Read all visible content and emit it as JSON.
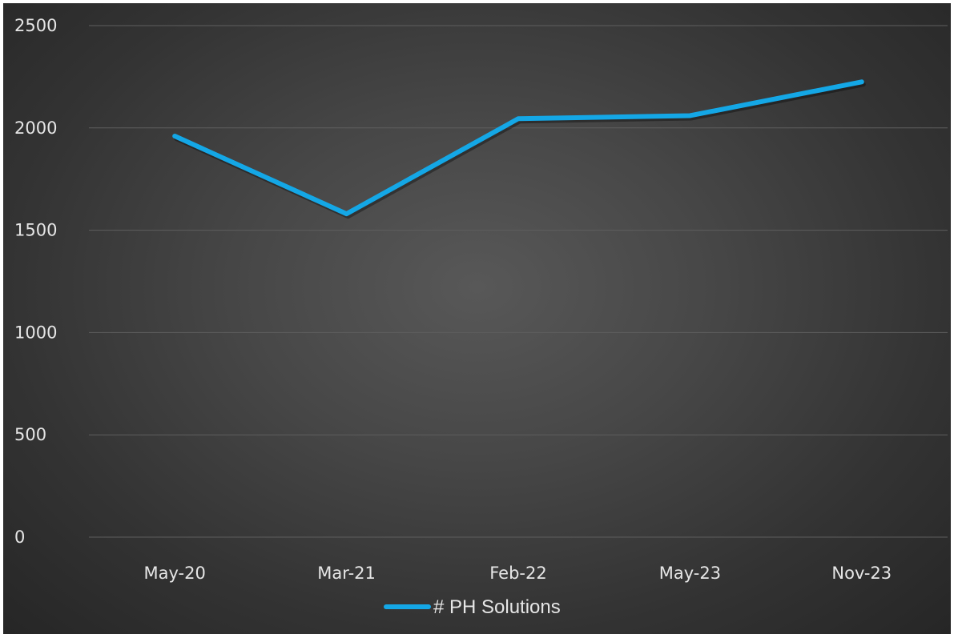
{
  "chart_data": {
    "type": "line",
    "title": "",
    "xlabel": "",
    "ylabel": "",
    "categories": [
      "May-20",
      "Mar-21",
      "Feb-22",
      "May-23",
      "Nov-23"
    ],
    "series": [
      {
        "name": "# PH Solutions",
        "values": [
          1960,
          1580,
          2045,
          2060,
          2225
        ],
        "color": "#14a7e6"
      }
    ],
    "ylim": [
      0,
      2500
    ],
    "yticks": [
      0,
      500,
      1000,
      1500,
      2000,
      2500
    ],
    "grid": true,
    "legend": "bottom",
    "background": "#474747",
    "text_color": "#e6e6e6"
  }
}
